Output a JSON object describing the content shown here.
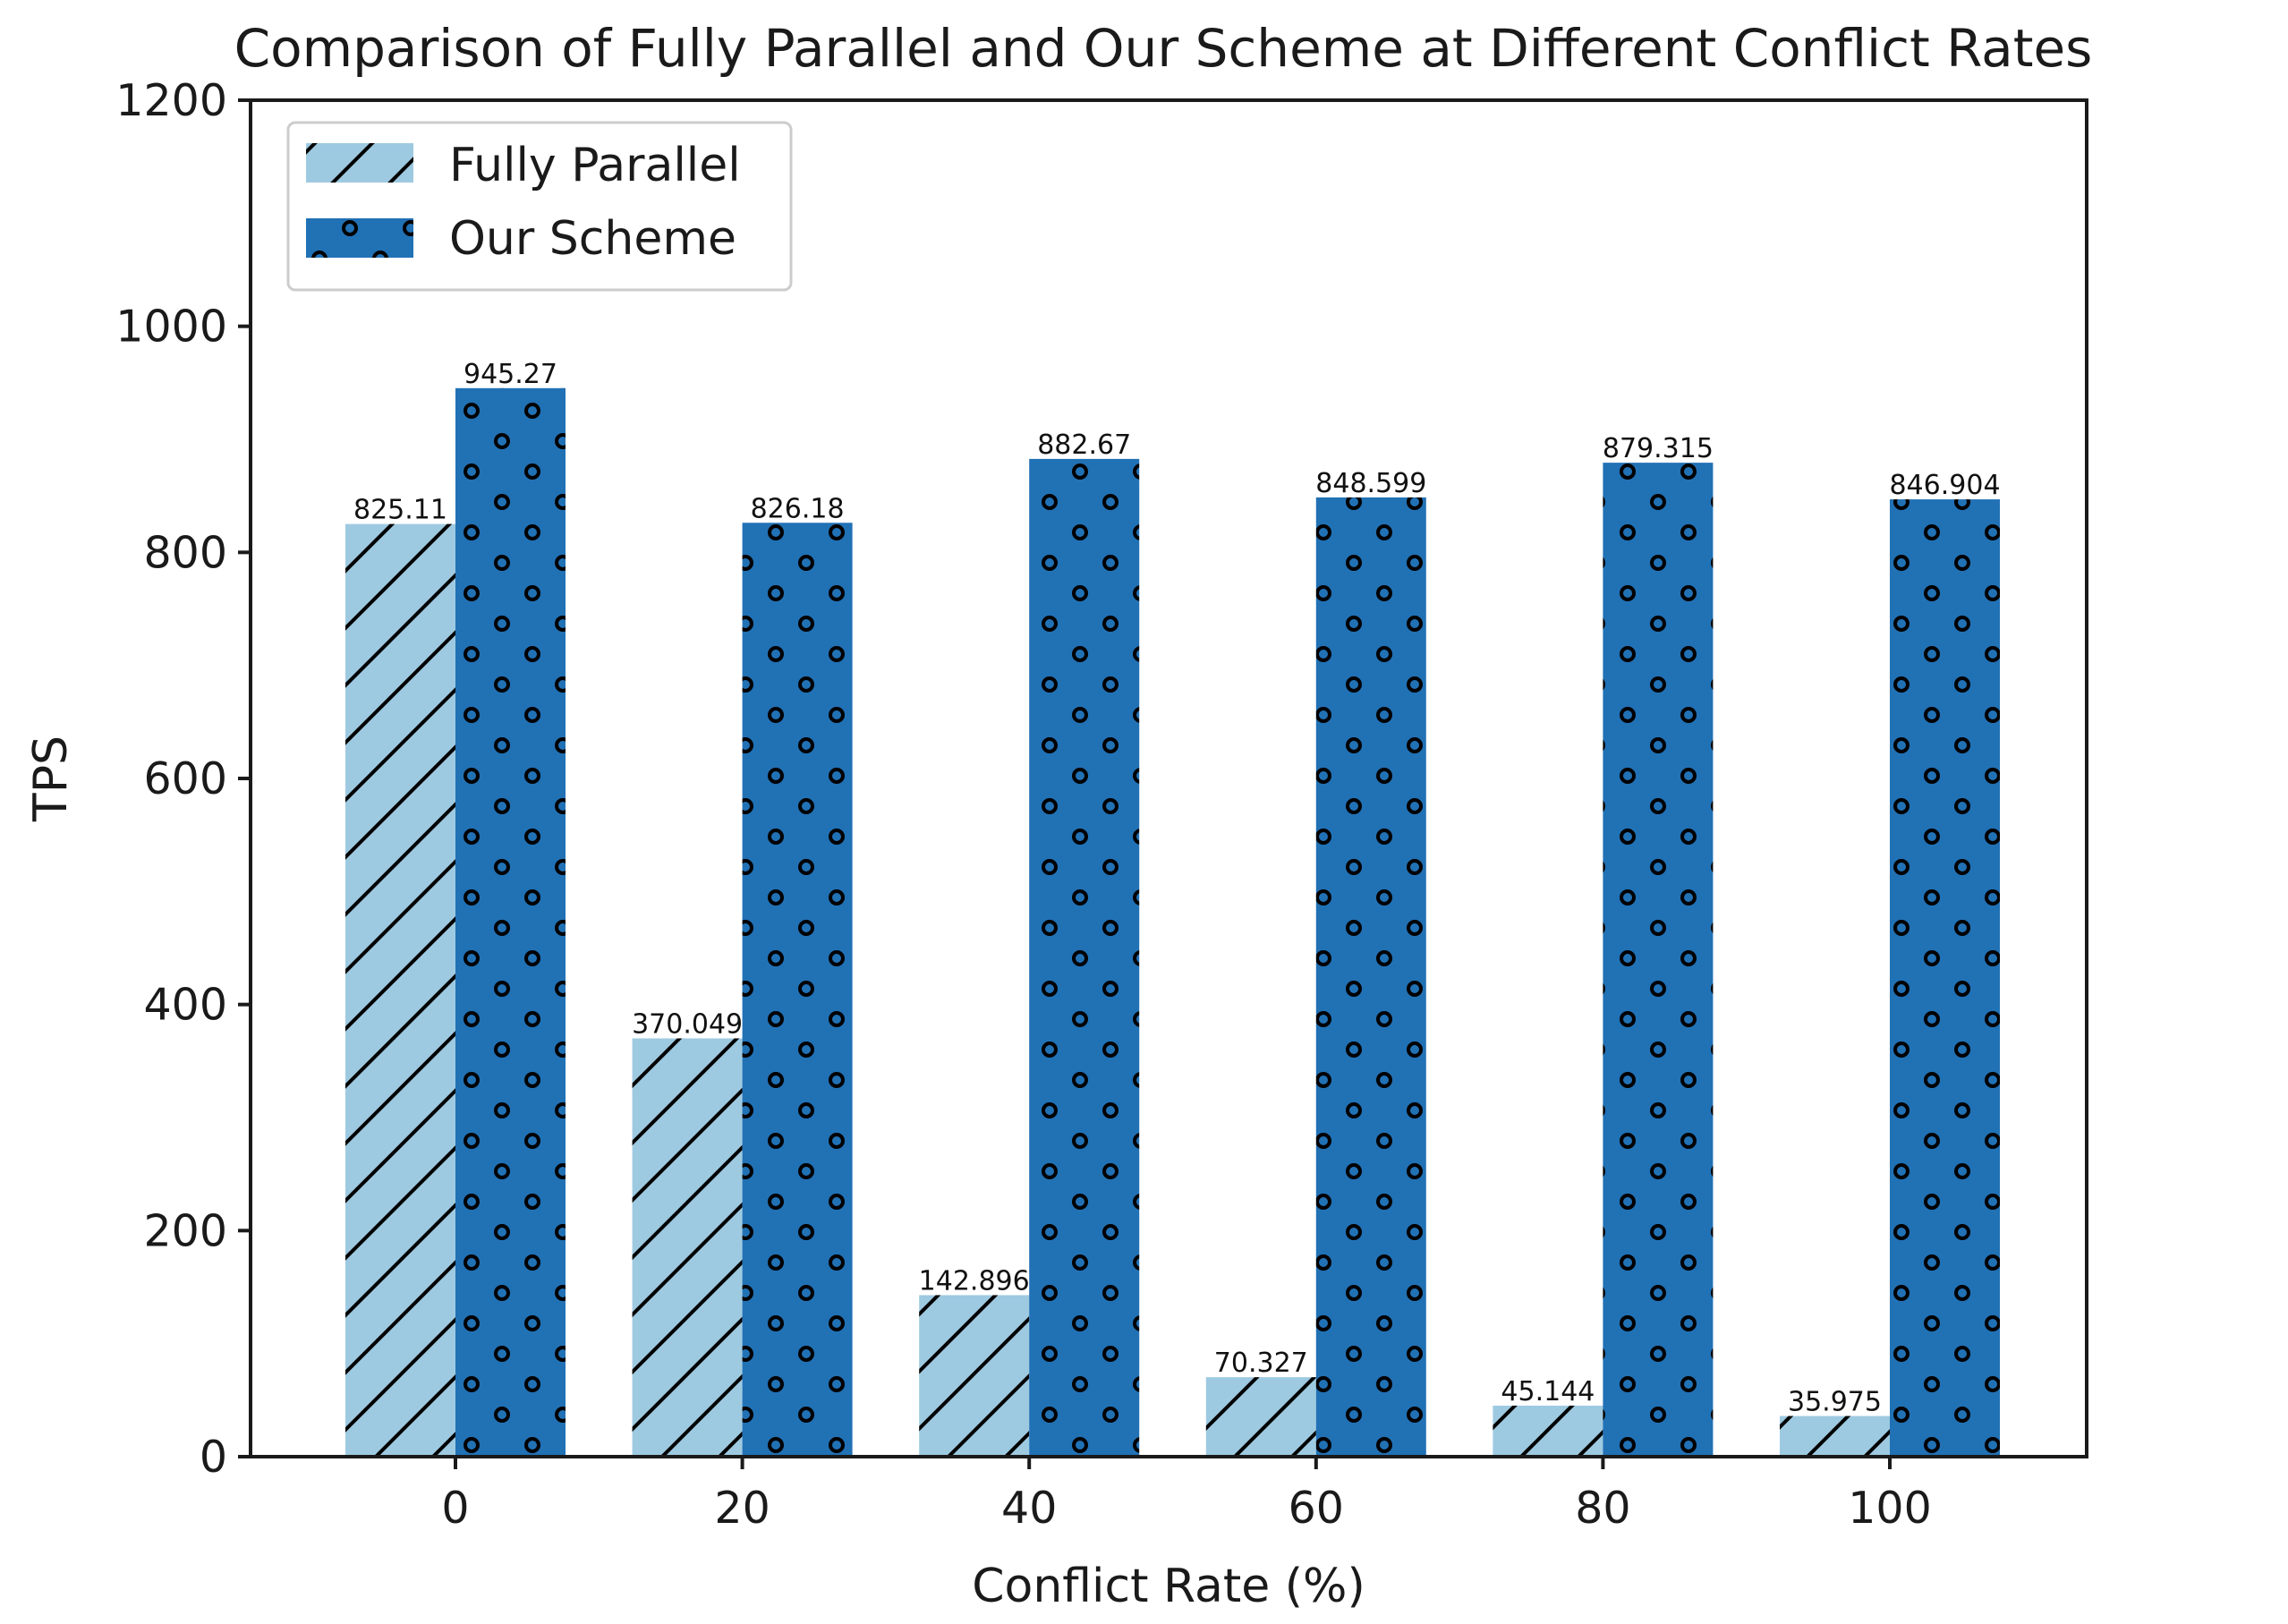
{
  "chart_data": {
    "type": "bar",
    "title": "Comparison of Fully Parallel and Our Scheme at Different Conflict Rates",
    "xlabel": "Conflict Rate (%)",
    "ylabel": "TPS",
    "categories": [
      "0",
      "20",
      "40",
      "60",
      "80",
      "100"
    ],
    "ylim": [
      0,
      1200
    ],
    "yticks": [
      0,
      200,
      400,
      600,
      800,
      1000,
      1200
    ],
    "grid": false,
    "legend_position": "top-left",
    "series": [
      {
        "name": "Fully Parallel",
        "color": "#9ecae1",
        "hatch": "diagonal-lines",
        "values": [
          825.11,
          370.049,
          142.896,
          70.327,
          45.144,
          35.975
        ],
        "labels": [
          "825.11",
          "370.049",
          "142.896",
          "70.327",
          "45.144",
          "35.975"
        ]
      },
      {
        "name": "Our Scheme",
        "color": "#2171b5",
        "hatch": "small-circles",
        "values": [
          945.27,
          826.18,
          882.67,
          848.599,
          879.315,
          846.904
        ],
        "labels": [
          "945.27",
          "826.18",
          "882.67",
          "848.599",
          "879.315",
          "846.904"
        ]
      }
    ]
  }
}
